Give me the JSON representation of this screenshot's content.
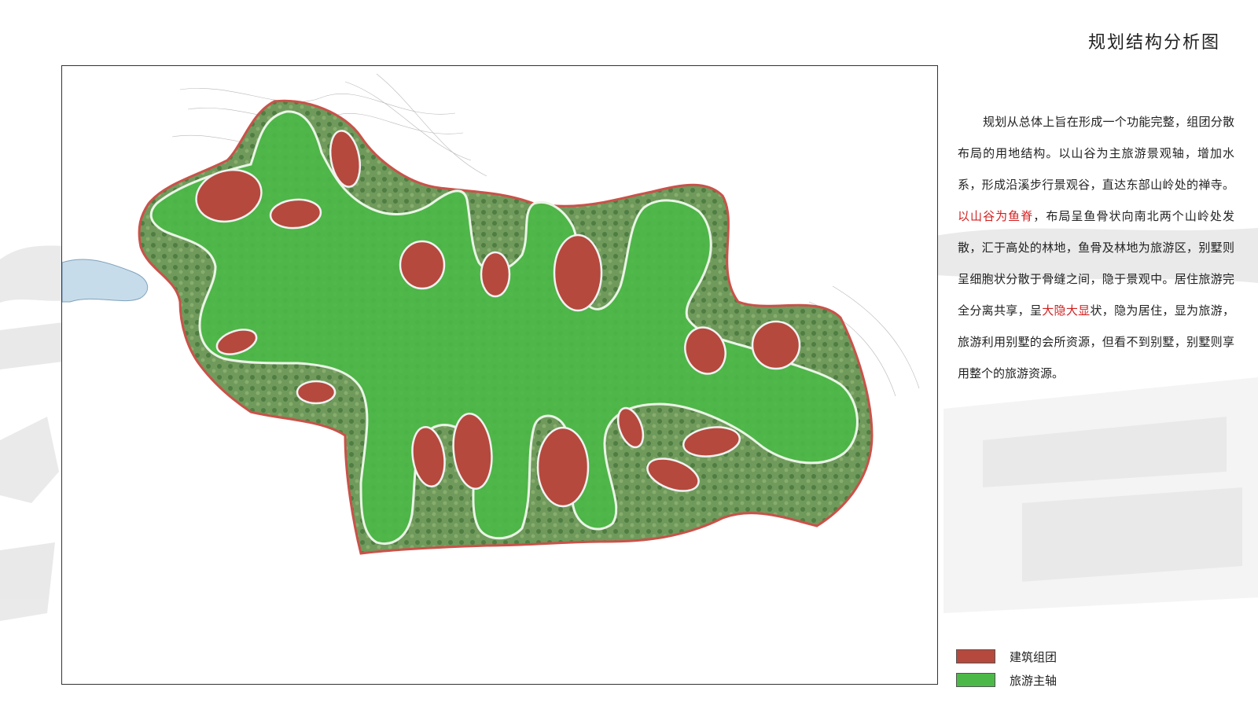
{
  "title": "规划结构分析图",
  "description": {
    "p1": "规划从总体上旨在形成一个功能完整，组团分散布局的用地结构。以山谷为主旅游景观轴，增加水系，形成沿溪步行景观谷，直达东部山岭处的禅寺。",
    "hl1": "以山谷为鱼脊",
    "p2": "，布局呈鱼骨状向南北两个山岭处发散，汇于高处的林地，鱼骨及林地为旅游区，别墅则呈细胞状分散于骨缝之间，隐于景观中。居住旅游完全分离共享，呈",
    "hl2": "大隐大显",
    "p3": "状，隐为居住，显为旅游，旅游利用别墅的会所资源，但看不到别墅，别墅则享用整个的旅游资源。"
  },
  "legend": [
    {
      "label": "建筑组团",
      "color": "#b5493d"
    },
    {
      "label": "旅游主轴",
      "color": "#4cb848"
    }
  ],
  "colors": {
    "building_cluster": "#b5493d",
    "tourism_axis": "#4cb848",
    "highlight_text": "#d21f1f",
    "site_boundary": "#c9524a",
    "water": "#c7dcea"
  }
}
